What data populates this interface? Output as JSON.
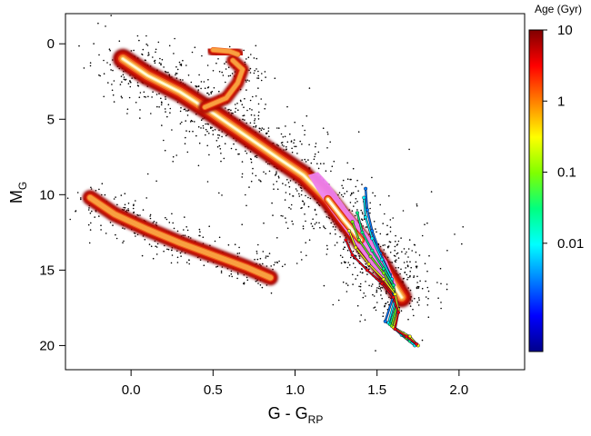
{
  "chart_data": {
    "type": "scatter",
    "title": "",
    "xlabel": {
      "main": "G - G",
      "sub": "RP"
    },
    "ylabel": {
      "main": "M",
      "sub": "G"
    },
    "xlim": [
      -0.4,
      2.4
    ],
    "ylim": [
      21.6,
      -2.0
    ],
    "y_inverted": true,
    "grid": false,
    "x_ticks": [
      0.0,
      0.5,
      1.0,
      1.5,
      2.0
    ],
    "x_tick_labels": [
      "0.0",
      "0.5",
      "1.0",
      "1.5",
      "2.0"
    ],
    "y_ticks": [
      0,
      5,
      10,
      15,
      20
    ],
    "y_tick_labels": [
      "0",
      "5",
      "10",
      "15",
      "20"
    ],
    "density_ridges": [
      {
        "name": "main sequence",
        "points": [
          [
            -0.05,
            1.0
          ],
          [
            0.1,
            2.1
          ],
          [
            0.3,
            3.2
          ],
          [
            0.5,
            4.6
          ],
          [
            0.7,
            6.1
          ],
          [
            0.9,
            7.6
          ],
          [
            1.05,
            8.7
          ],
          [
            1.2,
            10.3
          ],
          [
            1.3,
            11.7
          ],
          [
            1.4,
            13.0
          ],
          [
            1.5,
            14.3
          ],
          [
            1.58,
            15.6
          ],
          [
            1.65,
            16.8
          ]
        ]
      },
      {
        "name": "giant branch",
        "points": [
          [
            0.45,
            4.2
          ],
          [
            0.58,
            3.6
          ],
          [
            0.65,
            2.6
          ],
          [
            0.68,
            1.7
          ],
          [
            0.62,
            1.1
          ]
        ]
      },
      {
        "name": "red clump",
        "points": [
          [
            0.5,
            0.4
          ],
          [
            0.6,
            0.5
          ],
          [
            0.65,
            0.7
          ]
        ]
      },
      {
        "name": "white dwarf sequence",
        "points": [
          [
            -0.25,
            10.2
          ],
          [
            -0.1,
            11.3
          ],
          [
            0.1,
            12.3
          ],
          [
            0.3,
            13.2
          ],
          [
            0.5,
            14.0
          ],
          [
            0.7,
            14.8
          ],
          [
            0.85,
            15.5
          ]
        ]
      }
    ],
    "isochrone_tracks": [
      {
        "age_gyr": 0.003,
        "points": [
          [
            1.43,
            9.6
          ],
          [
            1.44,
            11.0
          ],
          [
            1.47,
            12.4
          ],
          [
            1.52,
            13.9
          ],
          [
            1.58,
            15.3
          ],
          [
            1.6,
            16.7
          ],
          [
            1.55,
            18.4
          ],
          [
            1.66,
            19.2
          ],
          [
            1.72,
            19.8
          ]
        ]
      },
      {
        "age_gyr": 0.01,
        "points": [
          [
            1.42,
            10.2
          ],
          [
            1.43,
            11.5
          ],
          [
            1.47,
            12.9
          ],
          [
            1.53,
            14.3
          ],
          [
            1.59,
            15.6
          ],
          [
            1.61,
            16.9
          ],
          [
            1.57,
            18.5
          ],
          [
            1.65,
            19.3
          ],
          [
            1.73,
            20.0
          ]
        ]
      },
      {
        "age_gyr": 0.03,
        "points": [
          [
            1.38,
            11.2
          ],
          [
            1.41,
            12.5
          ],
          [
            1.47,
            13.7
          ],
          [
            1.54,
            14.9
          ],
          [
            1.6,
            16.0
          ],
          [
            1.62,
            17.2
          ],
          [
            1.58,
            18.6
          ],
          [
            1.66,
            19.3
          ],
          [
            1.7,
            19.7
          ]
        ]
      },
      {
        "age_gyr": 0.1,
        "points": [
          [
            1.35,
            11.8
          ],
          [
            1.39,
            13.0
          ],
          [
            1.46,
            14.1
          ],
          [
            1.54,
            15.2
          ],
          [
            1.6,
            16.3
          ],
          [
            1.62,
            17.4
          ],
          [
            1.59,
            18.7
          ],
          [
            1.64,
            19.1
          ],
          [
            1.68,
            19.5
          ]
        ]
      },
      {
        "age_gyr": 0.5,
        "points": [
          [
            1.33,
            12.4
          ],
          [
            1.37,
            13.5
          ],
          [
            1.45,
            14.6
          ],
          [
            1.54,
            15.6
          ],
          [
            1.61,
            16.6
          ],
          [
            1.63,
            17.6
          ],
          [
            1.6,
            18.8
          ],
          [
            1.7,
            19.4
          ],
          [
            1.75,
            20.0
          ]
        ]
      },
      {
        "age_gyr": 3.0,
        "points": [
          [
            1.31,
            13.0
          ],
          [
            1.35,
            14.0
          ],
          [
            1.44,
            15.0
          ],
          [
            1.53,
            15.9
          ],
          [
            1.6,
            16.8
          ],
          [
            1.63,
            17.8
          ],
          [
            1.61,
            18.9
          ],
          [
            1.68,
            19.4
          ],
          [
            1.74,
            19.9
          ]
        ]
      }
    ],
    "highlight_band": {
      "name": "magenta region",
      "color": "#ee82ee",
      "points": [
        [
          1.14,
          8.5
        ],
        [
          1.2,
          9.2
        ],
        [
          1.32,
          11.0
        ],
        [
          1.44,
          12.6
        ],
        [
          1.56,
          14.4
        ],
        [
          1.62,
          16.0
        ],
        [
          1.58,
          16.2
        ],
        [
          1.46,
          14.6
        ],
        [
          1.33,
          12.7
        ],
        [
          1.22,
          11.1
        ],
        [
          1.14,
          9.8
        ],
        [
          1.08,
          8.7
        ]
      ]
    },
    "colorbar": {
      "title": "Age (Gyr)",
      "scale": "log",
      "range": [
        0.0003,
        10
      ],
      "ticks": [
        0.01,
        0.1,
        1,
        10
      ],
      "tick_labels": [
        "0.01",
        "0.1",
        "1",
        "10"
      ],
      "colors": [
        "#00008b",
        "#0000ff",
        "#0080ff",
        "#00ffff",
        "#00ff80",
        "#80ff00",
        "#ffff00",
        "#ff8000",
        "#ff0000",
        "#800000"
      ]
    },
    "density_colors": [
      "#8b0000",
      "#c00000",
      "#e03010",
      "#f06a20",
      "#f8a040",
      "#fde08a",
      "#fffbe0"
    ],
    "scatter_color": "#000000"
  }
}
